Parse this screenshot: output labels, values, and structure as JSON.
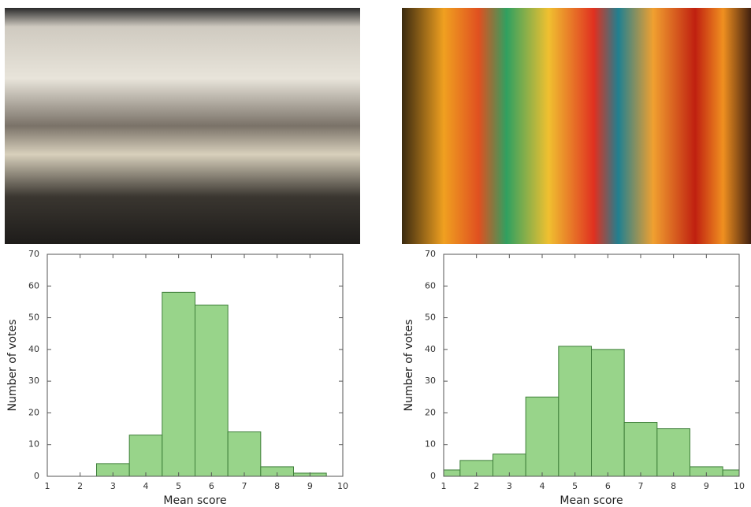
{
  "chart_data": [
    {
      "type": "histogram",
      "xlabel": "Mean score",
      "ylabel": "Number of votes",
      "bins": [
        2.5,
        3.5,
        4.5,
        5.5,
        6.5,
        7.5,
        8.5,
        9.5
      ],
      "values": [
        4,
        13,
        58,
        54,
        14,
        3,
        1
      ],
      "color": "#98d48a",
      "edgecolor": "#3f7f3a",
      "xlim": [
        1,
        10
      ],
      "ylim": [
        0,
        70
      ],
      "xticks": [
        1,
        2,
        3,
        4,
        5,
        6,
        7,
        8,
        9,
        10
      ],
      "yticks": [
        0,
        10,
        20,
        30,
        40,
        50,
        60,
        70
      ]
    },
    {
      "type": "histogram",
      "xlabel": "Mean score",
      "ylabel": "Number of votes",
      "bins": [
        1,
        1.5,
        2.5,
        3.5,
        4.5,
        5.5,
        6.5,
        7.5,
        8.5,
        9.5,
        10
      ],
      "values": [
        2,
        5,
        7,
        25,
        41,
        40,
        17,
        15,
        3,
        2
      ],
      "color": "#98d48a",
      "edgecolor": "#3f7f3a",
      "xlim": [
        1,
        10
      ],
      "ylim": [
        0,
        70
      ],
      "xticks": [
        1,
        2,
        3,
        4,
        5,
        6,
        7,
        8,
        9,
        10
      ],
      "yticks": [
        0,
        10,
        20,
        30,
        40,
        50,
        60,
        70
      ]
    }
  ]
}
